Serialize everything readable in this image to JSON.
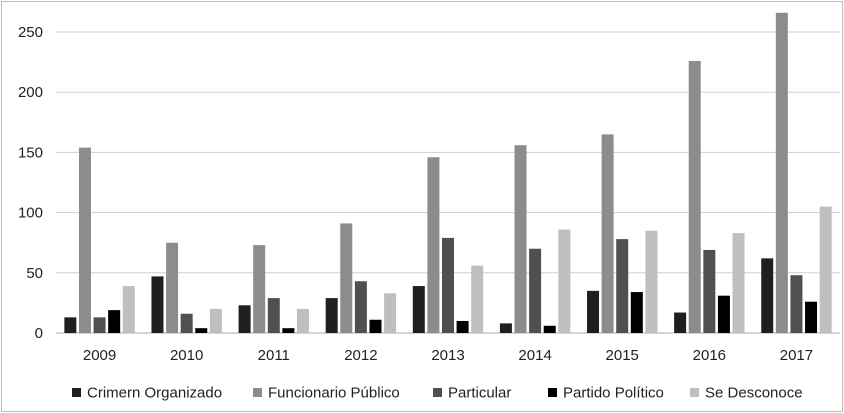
{
  "chart_data": {
    "type": "bar",
    "title": "",
    "xlabel": "",
    "ylabel": "",
    "ylim": [
      0,
      265
    ],
    "yticks": [
      0,
      50,
      100,
      150,
      200,
      250
    ],
    "grid": true,
    "legend_position": "bottom",
    "categories": [
      "2009",
      "2010",
      "2011",
      "2012",
      "2013",
      "2014",
      "2015",
      "2016",
      "2017"
    ],
    "series": [
      {
        "name": "Crimern Organizado",
        "color": "#1f1f1f",
        "values": [
          13,
          47,
          23,
          29,
          39,
          8,
          35,
          17,
          62
        ]
      },
      {
        "name": "Funcionario Público",
        "color": "#8c8c8c",
        "values": [
          154,
          75,
          73,
          91,
          146,
          156,
          165,
          226,
          266
        ]
      },
      {
        "name": "Particular",
        "color": "#505050",
        "values": [
          13,
          16,
          29,
          43,
          79,
          70,
          78,
          69,
          48
        ]
      },
      {
        "name": "Partido Político",
        "color": "#000000",
        "values": [
          19,
          4,
          4,
          11,
          10,
          6,
          34,
          31,
          26
        ]
      },
      {
        "name": "Se Desconoce",
        "color": "#bfbfbf",
        "values": [
          39,
          20,
          20,
          33,
          56,
          86,
          85,
          83,
          105
        ]
      }
    ]
  }
}
